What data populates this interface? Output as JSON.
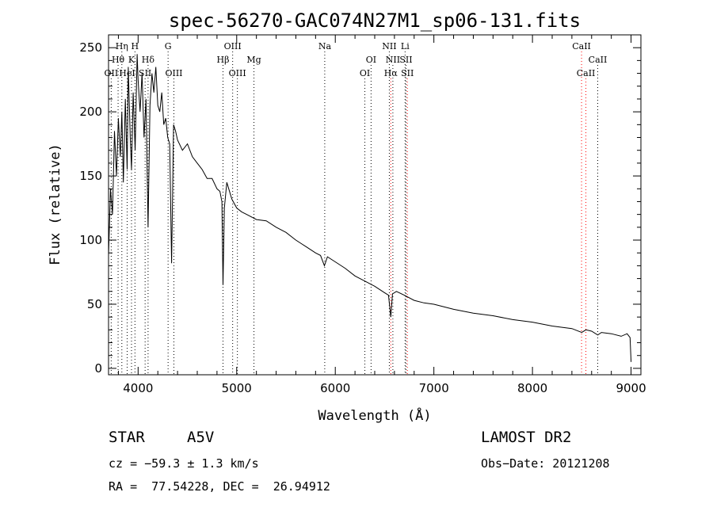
{
  "chart_data": {
    "type": "line",
    "title": "spec-56270-GAC074N27M1_sp06-131.fits",
    "xlabel": "Wavelength (Å)",
    "ylabel": "Flux (relative)",
    "xlim": [
      3700,
      9100
    ],
    "ylim": [
      -5,
      260
    ],
    "xticks": [
      4000,
      5000,
      6000,
      7000,
      8000,
      9000
    ],
    "yticks": [
      0,
      50,
      100,
      150,
      200,
      250
    ],
    "grid": false,
    "series": [
      {
        "x": [
          3700,
          3720,
          3740,
          3760,
          3780,
          3800,
          3820,
          3835,
          3850,
          3870,
          3889,
          3900,
          3920,
          3933,
          3950,
          3970,
          3990,
          4000,
          4020,
          4040,
          4060,
          4080,
          4101,
          4120,
          4140,
          4160,
          4180,
          4200,
          4220,
          4240,
          4260,
          4280,
          4300,
          4320,
          4340,
          4360,
          4380,
          4400,
          4450,
          4500,
          4550,
          4600,
          4650,
          4700,
          4750,
          4800,
          4830,
          4850,
          4861,
          4875,
          4900,
          4950,
          5000,
          5050,
          5100,
          5200,
          5300,
          5400,
          5500,
          5600,
          5700,
          5800,
          5850,
          5890,
          5920,
          6000,
          6100,
          6200,
          6300,
          6400,
          6500,
          6540,
          6563,
          6580,
          6620,
          6700,
          6800,
          6900,
          7000,
          7200,
          7400,
          7600,
          7800,
          8000,
          8200,
          8400,
          8500,
          8542,
          8600,
          8662,
          8700,
          8800,
          8900,
          8960,
          8990,
          9000
        ],
        "y": [
          88,
          140,
          120,
          185,
          150,
          195,
          165,
          200,
          145,
          210,
          155,
          235,
          180,
          155,
          215,
          170,
          245,
          225,
          200,
          230,
          180,
          210,
          110,
          205,
          230,
          215,
          235,
          205,
          200,
          215,
          190,
          195,
          180,
          175,
          82,
          190,
          185,
          178,
          170,
          175,
          165,
          160,
          155,
          148,
          148,
          140,
          138,
          130,
          65,
          125,
          145,
          132,
          125,
          122,
          120,
          116,
          115,
          110,
          106,
          100,
          95,
          90,
          88,
          80,
          87,
          83,
          78,
          72,
          68,
          64,
          59,
          57,
          40,
          58,
          60,
          57,
          53,
          51,
          50,
          46,
          43,
          41,
          38,
          36,
          33,
          31,
          28,
          30,
          29,
          26,
          28,
          27,
          25,
          27,
          24,
          5
        ]
      }
    ],
    "spectral_lines": [
      {
        "label": "Hη",
        "wl": 3835,
        "row": 1,
        "color": "#000000"
      },
      {
        "label": "H",
        "wl": 3968,
        "row": 1,
        "color": "#000000"
      },
      {
        "label": "Hθ",
        "wl": 3797,
        "row": 2,
        "color": "#000000"
      },
      {
        "label": "K",
        "wl": 3933,
        "row": 2,
        "color": "#000000"
      },
      {
        "label": "Hδ",
        "wl": 4101,
        "row": 2,
        "color": "#000000"
      },
      {
        "label": "OII",
        "wl": 3727,
        "row": 3,
        "color": "#000000"
      },
      {
        "label": "HeI",
        "wl": 3889,
        "row": 3,
        "color": "#000000"
      },
      {
        "label": "SII",
        "wl": 4071,
        "row": 3,
        "color": "#000000"
      },
      {
        "label": "G",
        "wl": 4304,
        "row": 1,
        "color": "#000000"
      },
      {
        "label": "OIII",
        "wl": 4363,
        "row": 3,
        "color": "#000000"
      },
      {
        "label": "OIII",
        "wl": 4959,
        "row": 1,
        "color": "#000000"
      },
      {
        "label": "Hβ",
        "wl": 4861,
        "row": 2,
        "color": "#000000"
      },
      {
        "label": "Mg",
        "wl": 5175,
        "row": 2,
        "color": "#000000"
      },
      {
        "label": "OIII",
        "wl": 5007,
        "row": 3,
        "color": "#000000"
      },
      {
        "label": "Na",
        "wl": 5893,
        "row": 1,
        "color": "#000000"
      },
      {
        "label": "OI",
        "wl": 6363,
        "row": 2,
        "color": "#000000"
      },
      {
        "label": "OI",
        "wl": 6300,
        "row": 3,
        "color": "#000000"
      },
      {
        "label": "NII",
        "wl": 6548,
        "row": 1,
        "color": "#000000"
      },
      {
        "label": "Li",
        "wl": 6708,
        "row": 1,
        "color": "#000000"
      },
      {
        "label": "NII",
        "wl": 6584,
        "row": 2,
        "color": "#000000"
      },
      {
        "label": "SII",
        "wl": 6717,
        "row": 2,
        "color": "#000000"
      },
      {
        "label": "Hα",
        "wl": 6563,
        "row": 3,
        "color": "#ff0000"
      },
      {
        "label": "SII",
        "wl": 6731,
        "row": 3,
        "color": "#ff0000"
      },
      {
        "label": "CaII",
        "wl": 8498,
        "row": 1,
        "color": "#ff0000"
      },
      {
        "label": "CaII",
        "wl": 8662,
        "row": 2,
        "color": "#000000"
      },
      {
        "label": "CaII",
        "wl": 8542,
        "row": 3,
        "color": "#ff0000"
      }
    ]
  },
  "info": {
    "object_class": "STAR",
    "subclass": "A5V",
    "cz": "cz = −59.3 ± 1.3 km/s",
    "coords": "RA =  77.54228, DEC =  26.94912",
    "survey": "LAMOST DR2",
    "obs_date": "Obs−Date: 20121208"
  }
}
